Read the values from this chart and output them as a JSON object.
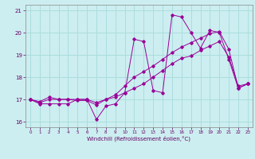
{
  "xlabel": "Windchill (Refroidissement éolien,°C)",
  "bg_color": "#cceef0",
  "grid_color": "#aadddd",
  "line_color": "#990099",
  "xlim": [
    -0.5,
    23.5
  ],
  "ylim": [
    15.75,
    21.25
  ],
  "yticks": [
    16,
    17,
    18,
    19,
    20,
    21
  ],
  "xticks": [
    0,
    1,
    2,
    3,
    4,
    5,
    6,
    7,
    8,
    9,
    10,
    11,
    12,
    13,
    14,
    15,
    16,
    17,
    18,
    19,
    20,
    21,
    22,
    23
  ],
  "line1_x": [
    0,
    1,
    2,
    3,
    4,
    5,
    6,
    7,
    8,
    9,
    10,
    11,
    12,
    13,
    14,
    15,
    16,
    17,
    18,
    19,
    20,
    21,
    22,
    23
  ],
  "line1_y": [
    17.0,
    16.8,
    16.8,
    16.8,
    16.8,
    17.0,
    17.0,
    16.1,
    16.7,
    16.8,
    17.3,
    19.7,
    19.6,
    17.4,
    17.3,
    20.8,
    20.7,
    20.0,
    19.3,
    20.1,
    20.0,
    18.8,
    17.5,
    17.7
  ],
  "line2_x": [
    0,
    1,
    2,
    3,
    4,
    5,
    6,
    7,
    8,
    9,
    10,
    11,
    12,
    13,
    14,
    15,
    16,
    17,
    18,
    19,
    20,
    21,
    22,
    23
  ],
  "line2_y": [
    17.0,
    16.9,
    17.1,
    17.0,
    17.0,
    17.0,
    17.0,
    16.85,
    17.0,
    17.2,
    17.6,
    18.0,
    18.25,
    18.5,
    18.8,
    19.1,
    19.35,
    19.55,
    19.75,
    19.95,
    20.05,
    19.25,
    17.5,
    17.7
  ],
  "line3_x": [
    0,
    1,
    2,
    3,
    4,
    5,
    6,
    7,
    8,
    9,
    10,
    11,
    12,
    13,
    14,
    15,
    16,
    17,
    18,
    19,
    20,
    21,
    22,
    23
  ],
  "line3_y": [
    17.0,
    16.85,
    17.0,
    17.0,
    17.0,
    16.95,
    16.95,
    16.75,
    17.0,
    17.1,
    17.3,
    17.5,
    17.7,
    18.0,
    18.3,
    18.6,
    18.85,
    18.95,
    19.2,
    19.4,
    19.6,
    18.9,
    17.6,
    17.7
  ]
}
